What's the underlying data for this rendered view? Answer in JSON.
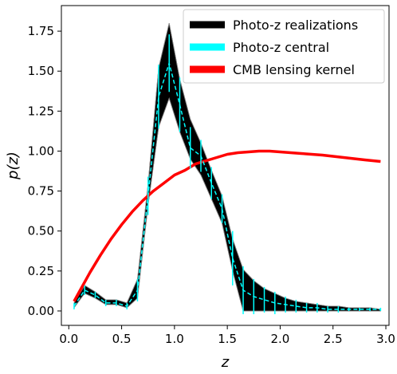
{
  "chart_data": {
    "type": "line",
    "xlabel": "z",
    "ylabel": "p(z)",
    "xlim": [
      -0.07,
      3.03
    ],
    "ylim": [
      -0.09,
      1.91
    ],
    "xticks": [
      0.0,
      0.5,
      1.0,
      1.5,
      2.0,
      2.5,
      3.0
    ],
    "xtick_labels": [
      "0.0",
      "0.5",
      "1.0",
      "1.5",
      "2.0",
      "2.5",
      "3.0"
    ],
    "yticks": [
      0.0,
      0.25,
      0.5,
      0.75,
      1.0,
      1.25,
      1.5,
      1.75
    ],
    "ytick_labels": [
      "0.00",
      "0.25",
      "0.50",
      "0.75",
      "1.00",
      "1.25",
      "1.50",
      "1.75"
    ],
    "grid": false,
    "legend_position": "top-right",
    "series": [
      {
        "name": "Photo-z realizations",
        "color": "#000000",
        "style": "band",
        "x": [
          0.05,
          0.15,
          0.25,
          0.35,
          0.45,
          0.55,
          0.65,
          0.75,
          0.85,
          0.95,
          1.05,
          1.15,
          1.25,
          1.35,
          1.45,
          1.55,
          1.65,
          1.75,
          1.85,
          1.95,
          2.05,
          2.15,
          2.25,
          2.35,
          2.45,
          2.55,
          2.65,
          2.75,
          2.85,
          2.95
        ],
        "lower": [
          0.02,
          0.11,
          0.08,
          0.04,
          0.04,
          0.02,
          0.08,
          0.66,
          1.15,
          1.33,
          1.12,
          0.95,
          0.85,
          0.7,
          0.55,
          0.25,
          0.0,
          0.0,
          0.0,
          0.0,
          0.0,
          0.0,
          0.0,
          0.0,
          0.0,
          0.0,
          0.0,
          0.0,
          0.0,
          0.0
        ],
        "upper": [
          0.05,
          0.16,
          0.12,
          0.07,
          0.07,
          0.05,
          0.2,
          0.79,
          1.52,
          1.8,
          1.45,
          1.2,
          1.05,
          0.88,
          0.72,
          0.45,
          0.26,
          0.19,
          0.14,
          0.11,
          0.08,
          0.06,
          0.05,
          0.04,
          0.03,
          0.03,
          0.02,
          0.02,
          0.02,
          0.01
        ]
      },
      {
        "name": "Photo-z central",
        "color": "#00ffff",
        "style": "dashed-errorbar",
        "x": [
          0.05,
          0.15,
          0.25,
          0.35,
          0.45,
          0.55,
          0.65,
          0.75,
          0.85,
          0.95,
          1.05,
          1.15,
          1.25,
          1.35,
          1.45,
          1.55,
          1.65,
          1.75,
          1.85,
          1.95,
          2.05,
          2.15,
          2.25,
          2.35,
          2.45,
          2.55,
          2.65,
          2.75,
          2.85,
          2.95
        ],
        "y": [
          0.03,
          0.13,
          0.1,
          0.05,
          0.05,
          0.03,
          0.13,
          0.72,
          1.34,
          1.55,
          1.29,
          1.02,
          0.97,
          0.8,
          0.64,
          0.33,
          0.13,
          0.09,
          0.07,
          0.05,
          0.04,
          0.03,
          0.02,
          0.02,
          0.01,
          0.01,
          0.01,
          0.01,
          0.01,
          0.01
        ],
        "err": [
          0.02,
          0.03,
          0.02,
          0.02,
          0.02,
          0.02,
          0.07,
          0.12,
          0.2,
          0.18,
          0.17,
          0.13,
          0.1,
          0.1,
          0.09,
          0.17,
          0.15,
          0.11,
          0.08,
          0.07,
          0.05,
          0.04,
          0.03,
          0.03,
          0.02,
          0.02,
          0.01,
          0.01,
          0.01,
          0.01
        ]
      },
      {
        "name": "CMB lensing kernel",
        "color": "#ff0000",
        "style": "line",
        "x": [
          0.05,
          0.1,
          0.2,
          0.3,
          0.4,
          0.5,
          0.6,
          0.7,
          0.8,
          0.9,
          1.0,
          1.1,
          1.2,
          1.3,
          1.4,
          1.5,
          1.6,
          1.7,
          1.8,
          1.9,
          2.0,
          2.2,
          2.4,
          2.6,
          2.8,
          2.95
        ],
        "y": [
          0.06,
          0.12,
          0.24,
          0.35,
          0.45,
          0.54,
          0.62,
          0.69,
          0.75,
          0.8,
          0.85,
          0.88,
          0.92,
          0.94,
          0.96,
          0.98,
          0.99,
          0.995,
          1.0,
          1.0,
          0.995,
          0.985,
          0.975,
          0.96,
          0.945,
          0.935
        ]
      }
    ]
  }
}
